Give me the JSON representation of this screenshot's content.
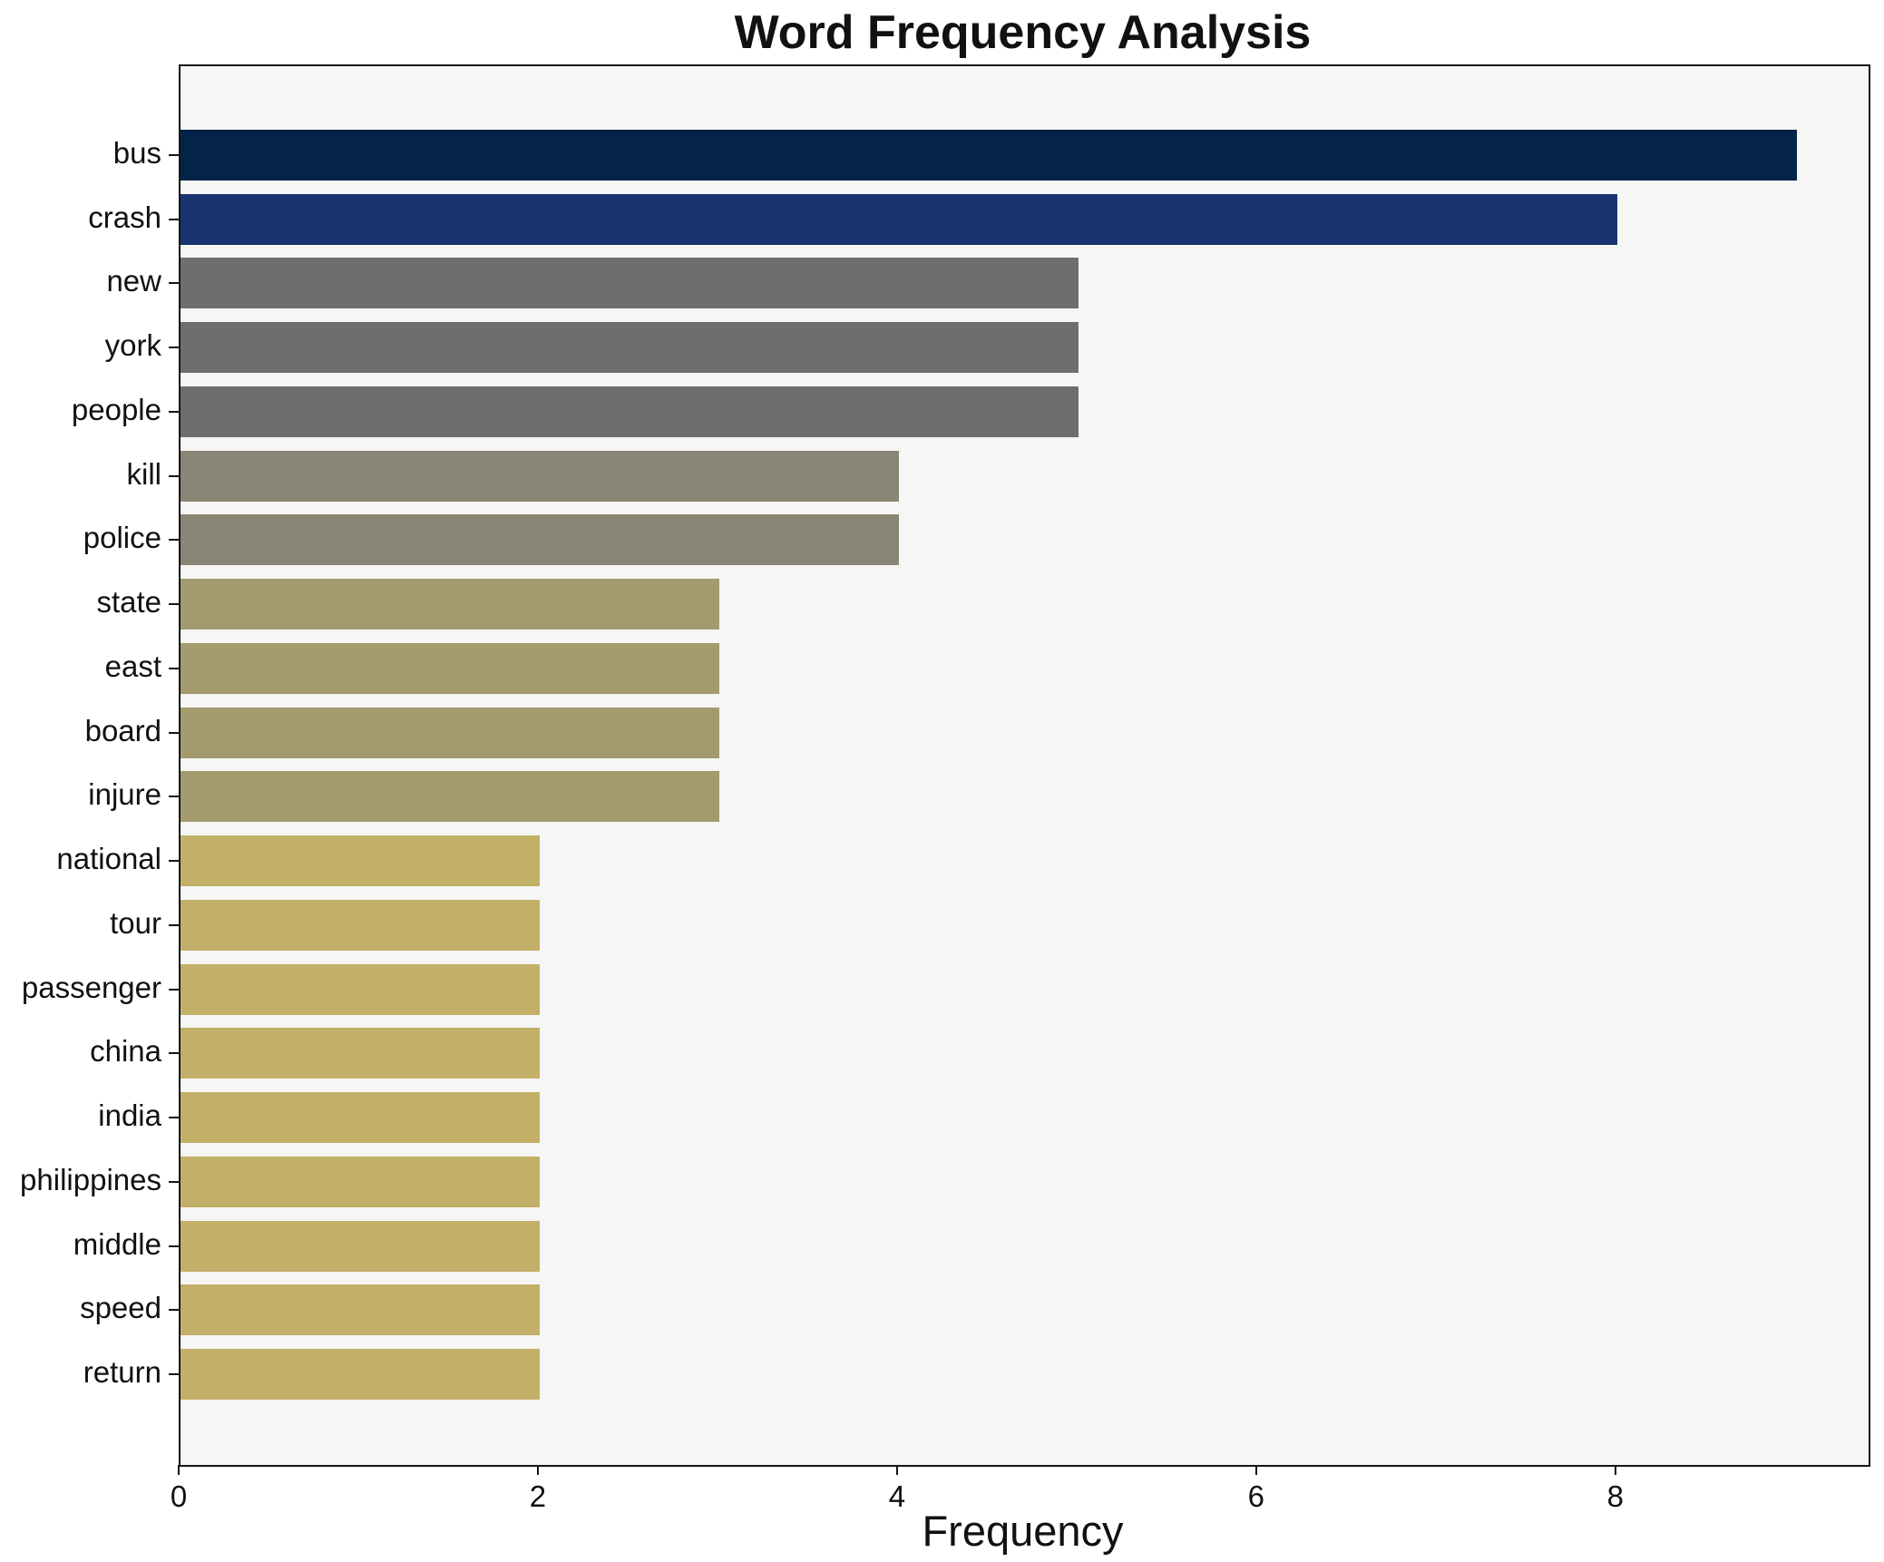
{
  "title": "Word Frequency Analysis",
  "xlabel": "Frequency",
  "chart_data": {
    "type": "bar",
    "orientation": "horizontal",
    "title": "Word Frequency Analysis",
    "xlabel": "Frequency",
    "ylabel": "",
    "categories": [
      "bus",
      "crash",
      "new",
      "york",
      "people",
      "kill",
      "police",
      "state",
      "east",
      "board",
      "injure",
      "national",
      "tour",
      "passenger",
      "china",
      "india",
      "philippines",
      "middle",
      "speed",
      "return"
    ],
    "values": [
      9,
      8,
      5,
      5,
      5,
      4,
      4,
      3,
      3,
      3,
      3,
      2,
      2,
      2,
      2,
      2,
      2,
      2,
      2,
      2
    ],
    "bar_colors": [
      "#042349",
      "#18336f",
      "#6e6e71",
      "#6e6e71",
      "#6e6e71",
      "#8a8675",
      "#8a8675",
      "#a39a6e",
      "#a39a6e",
      "#a39a6e",
      "#a39a6e",
      "#c3b068",
      "#c3b068",
      "#c3b068",
      "#c3b068",
      "#c3b068",
      "#c3b068",
      "#c3b068",
      "#c3b068",
      "#c3b068"
    ],
    "xlim": [
      0,
      9.4
    ],
    "x_ticks": [
      0,
      2,
      4,
      6,
      8
    ],
    "grid": false,
    "legend": null,
    "plot_bg": "#f6f6f5",
    "figure_bg": "#ffffff",
    "spine_color": "#151515"
  }
}
